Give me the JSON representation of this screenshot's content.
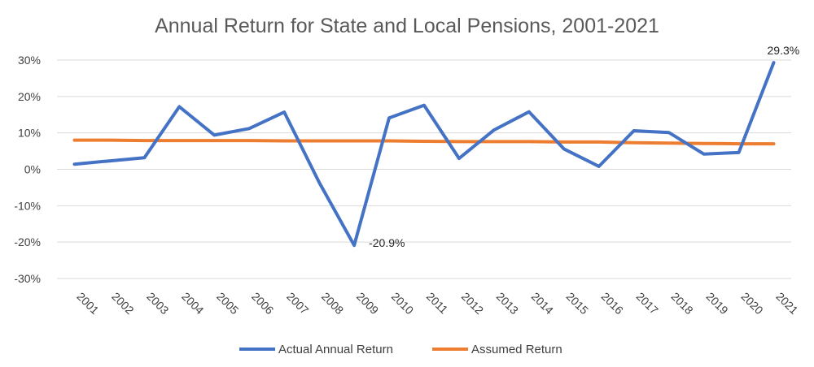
{
  "chart_data": {
    "type": "line",
    "title": "Annual Return for State and Local Pensions, 2001-2021",
    "x": [
      "2001",
      "2002",
      "2003",
      "2004",
      "2005",
      "2006",
      "2007",
      "2008",
      "2009",
      "2010",
      "2011",
      "2012",
      "2013",
      "2014",
      "2015",
      "2016",
      "2017",
      "2018",
      "2019",
      "2020",
      "2021"
    ],
    "series": [
      {
        "name": "Actual Annual Return",
        "color": "#4472C4",
        "values": [
          1.4,
          2.3,
          3.2,
          17.2,
          9.4,
          11.2,
          15.7,
          -3.6,
          -20.9,
          14.1,
          17.6,
          3.0,
          10.8,
          15.8,
          5.6,
          0.8,
          10.6,
          10.1,
          4.2,
          4.6,
          29.3
        ]
      },
      {
        "name": "Assumed Return",
        "color": "#ED7D31",
        "values": [
          8.0,
          8.0,
          7.9,
          7.9,
          7.9,
          7.9,
          7.8,
          7.8,
          7.8,
          7.8,
          7.7,
          7.6,
          7.6,
          7.6,
          7.5,
          7.5,
          7.3,
          7.2,
          7.1,
          7.0,
          7.0
        ]
      }
    ],
    "ylim": [
      -30,
      30
    ],
    "yticks": [
      "30%",
      "20%",
      "10%",
      "0%",
      "-10%",
      "-20%",
      "-30%"
    ],
    "grid": true,
    "legend_position": "bottom",
    "annotations": [
      {
        "text": "29.3%",
        "series": 0,
        "index": 20
      },
      {
        "text": "-20.9%",
        "series": 0,
        "index": 8
      }
    ]
  }
}
